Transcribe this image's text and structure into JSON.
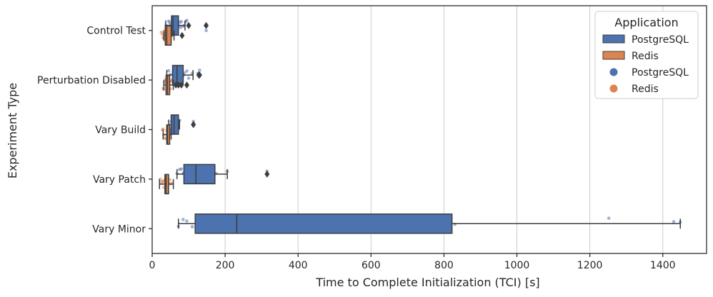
{
  "chart_data": {
    "type": "box",
    "orientation": "horizontal",
    "xlabel": "Time to Complete Initialization (TCI) [s]",
    "ylabel": "Experiment Type",
    "xlim": [
      0,
      1520
    ],
    "xticks": [
      0,
      200,
      400,
      600,
      800,
      1000,
      1200,
      1400
    ],
    "grid": "vertical",
    "legend": {
      "title": "Application",
      "position": "top-right",
      "entries": [
        {
          "label": "PostgreSQL",
          "marker": "box",
          "color": "#4c72b0"
        },
        {
          "label": "Redis",
          "marker": "box",
          "color": "#dd8452"
        },
        {
          "label": "PostgreSQL",
          "marker": "dot",
          "color": "#4c72b0"
        },
        {
          "label": "Redis",
          "marker": "dot",
          "color": "#dd8452"
        }
      ]
    },
    "colors": {
      "PostgreSQL": "#4c72b0",
      "Redis": "#dd8452"
    },
    "categories": [
      "Control Test",
      "Perturbation Disabled",
      "Vary Build",
      "Vary Patch",
      "Vary Minor"
    ],
    "series": [
      {
        "name": "PostgreSQL",
        "boxes": [
          {
            "whislo": 37,
            "q1": 53,
            "med": 57,
            "q3": 72,
            "whishi": 90,
            "fliers": [
              100,
              148
            ]
          },
          {
            "whislo": 40,
            "q1": 56,
            "med": 68,
            "q3": 85,
            "whishi": 112,
            "fliers": [
              128,
              130
            ]
          },
          {
            "whislo": 45,
            "q1": 52,
            "med": 60,
            "q3": 72,
            "whishi": 75,
            "fliers": [
              113
            ]
          },
          {
            "whislo": 68,
            "q1": 87,
            "med": 120,
            "q3": 172,
            "whishi": 206,
            "fliers": [
              315
            ]
          },
          {
            "whislo": 72,
            "q1": 118,
            "med": 232,
            "q3": 822,
            "whishi": 1448,
            "fliers": []
          }
        ],
        "points": [
          [
            38,
            42,
            45,
            48,
            50,
            52,
            55,
            57,
            58,
            60,
            62,
            65,
            68,
            70,
            72,
            75,
            78,
            80,
            85,
            88,
            92,
            95,
            148
          ],
          [
            40,
            45,
            50,
            55,
            58,
            60,
            65,
            68,
            70,
            72,
            75,
            78,
            82,
            85,
            88,
            95,
            100,
            110,
            125,
            130
          ],
          [
            48,
            52,
            55,
            58,
            60,
            62,
            65,
            70,
            72,
            75,
            113
          ],
          [
            68,
            75,
            80,
            85,
            90,
            95,
            100,
            110,
            120,
            130,
            150,
            160,
            170,
            175,
            206,
            315
          ],
          [
            72,
            85,
            95,
            110,
            120,
            135,
            200,
            232,
            310,
            470,
            830,
            1252,
            1430,
            1448
          ]
        ]
      },
      {
        "name": "Redis",
        "boxes": [
          {
            "whislo": 32,
            "q1": 36,
            "med": 40,
            "q3": 52,
            "whishi": 60,
            "fliers": [
              82
            ]
          },
          {
            "whislo": 32,
            "q1": 38,
            "med": 42,
            "q3": 48,
            "whishi": 58,
            "fliers": [
              65,
              72,
              80,
              95
            ]
          },
          {
            "whislo": 30,
            "q1": 40,
            "med": 42,
            "q3": 48,
            "whishi": 52,
            "fliers": []
          },
          {
            "whislo": 20,
            "q1": 35,
            "med": 38,
            "q3": 45,
            "whishi": 58,
            "fliers": []
          }
        ],
        "points": [
          [
            25,
            28,
            30,
            32,
            34,
            35,
            36,
            38,
            40,
            42,
            44,
            46,
            48,
            50,
            52,
            55,
            58
          ],
          [
            30,
            32,
            34,
            36,
            38,
            40,
            42,
            44,
            46,
            48,
            50,
            52,
            55
          ],
          [
            28,
            30,
            32,
            35,
            38,
            40,
            42,
            45,
            48,
            50
          ],
          [
            22,
            25,
            28,
            30,
            32,
            35,
            36,
            38,
            40,
            42,
            45,
            48,
            50,
            55
          ]
        ]
      }
    ]
  }
}
